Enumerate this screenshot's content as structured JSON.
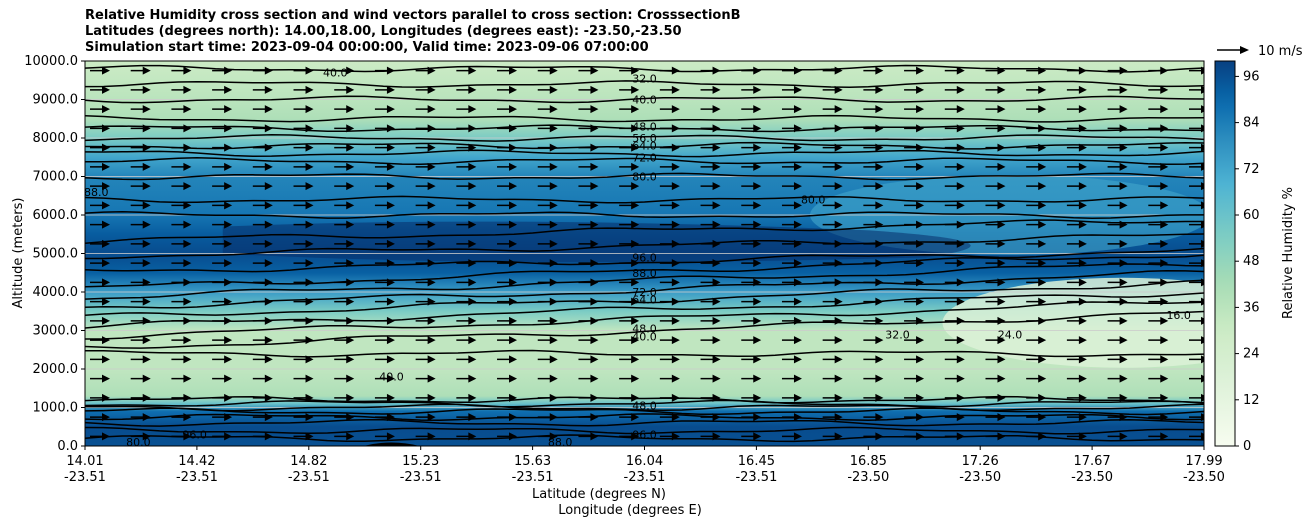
{
  "chart_data": {
    "type": "heatmap",
    "title_lines": [
      "Relative Humidity cross section and wind vectors parallel to cross section: CrosssectionB",
      "Latitudes (degrees north): 14.00,18.00, Longitudes (degrees east): -23.50,-23.50",
      "Simulation start time: 2023-09-04 00:00:00, Valid time: 2023-09-06 07:00:00"
    ],
    "ylabel": "Altitude (meters)",
    "xlabel": "Latitude (degrees N)",
    "xlabel2": "Longitude (degrees E)",
    "ylim": [
      0,
      10000
    ],
    "grid": "horizontal",
    "y_ticks": [
      "0.0",
      "1000.0",
      "2000.0",
      "3000.0",
      "4000.0",
      "5000.0",
      "6000.0",
      "7000.0",
      "8000.0",
      "9000.0",
      "10000.0"
    ],
    "x_ticks_lat": [
      "14.01",
      "14.42",
      "14.82",
      "15.23",
      "15.63",
      "16.04",
      "16.45",
      "16.85",
      "17.26",
      "17.67",
      "17.99"
    ],
    "x_ticks_lon": [
      "-23.51",
      "-23.51",
      "-23.51",
      "-23.51",
      "-23.51",
      "-23.51",
      "-23.51",
      "-23.50",
      "-23.50",
      "-23.50",
      "-23.50"
    ],
    "colorbar": {
      "label": "Relative Humidity %",
      "ticks": [
        "0",
        "12",
        "24",
        "36",
        "48",
        "60",
        "72",
        "84",
        "96"
      ],
      "range": [
        0,
        100
      ]
    },
    "quiver_key": "10 m/s",
    "rh_profile": [
      {
        "z": 0,
        "rh": 96
      },
      {
        "z": 500,
        "rh": 97
      },
      {
        "z": 900,
        "rh": 88
      },
      {
        "z": 1100,
        "rh": 60
      },
      {
        "z": 1300,
        "rh": 40
      },
      {
        "z": 2000,
        "rh": 34
      },
      {
        "z": 3000,
        "rh": 34
      },
      {
        "z": 3500,
        "rh": 55
      },
      {
        "z": 4000,
        "rh": 75
      },
      {
        "z": 4500,
        "rh": 92
      },
      {
        "z": 5000,
        "rh": 97
      },
      {
        "z": 5500,
        "rh": 93
      },
      {
        "z": 6000,
        "rh": 86
      },
      {
        "z": 7000,
        "rh": 82
      },
      {
        "z": 7500,
        "rh": 72
      },
      {
        "z": 8000,
        "rh": 55
      },
      {
        "z": 8500,
        "rh": 40
      },
      {
        "z": 9000,
        "rh": 36
      },
      {
        "z": 10000,
        "rh": 30
      }
    ],
    "contour_labels": [
      {
        "text": "40.0",
        "x": 14.9,
        "z": 9700
      },
      {
        "text": "32.0",
        "x": 16.0,
        "z": 9550
      },
      {
        "text": "40.0",
        "x": 16.0,
        "z": 9000
      },
      {
        "text": "48.0",
        "x": 16.0,
        "z": 8300
      },
      {
        "text": "56.0",
        "x": 16.0,
        "z": 8000
      },
      {
        "text": "64.0",
        "x": 16.0,
        "z": 7800
      },
      {
        "text": "72.0",
        "x": 16.0,
        "z": 7500
      },
      {
        "text": "80.0",
        "x": 16.0,
        "z": 7000
      },
      {
        "text": "88.0",
        "x": 14.05,
        "z": 6600
      },
      {
        "text": "80.0",
        "x": 16.6,
        "z": 6400
      },
      {
        "text": "96.0",
        "x": 16.0,
        "z": 4900
      },
      {
        "text": "88.0",
        "x": 16.0,
        "z": 4500
      },
      {
        "text": "72.0",
        "x": 16.0,
        "z": 4000
      },
      {
        "text": "64.0",
        "x": 16.0,
        "z": 3800
      },
      {
        "text": "48.0",
        "x": 16.0,
        "z": 3050
      },
      {
        "text": "40.0",
        "x": 16.0,
        "z": 2850
      },
      {
        "text": "32.0",
        "x": 16.9,
        "z": 2900
      },
      {
        "text": "24.0",
        "x": 17.3,
        "z": 2900
      },
      {
        "text": "16.0",
        "x": 17.9,
        "z": 3400
      },
      {
        "text": "40.0",
        "x": 15.1,
        "z": 1800
      },
      {
        "text": "48.0",
        "x": 16.0,
        "z": 1050
      },
      {
        "text": "96.0",
        "x": 16.0,
        "z": 300
      },
      {
        "text": "96.0",
        "x": 14.4,
        "z": 300
      },
      {
        "text": "80.0",
        "x": 14.2,
        "z": 100
      },
      {
        "text": "88.0",
        "x": 15.7,
        "z": 100
      }
    ],
    "wind": {
      "direction": "parallel, pointing toward increasing latitude",
      "speed_approx_ms": 10
    }
  }
}
